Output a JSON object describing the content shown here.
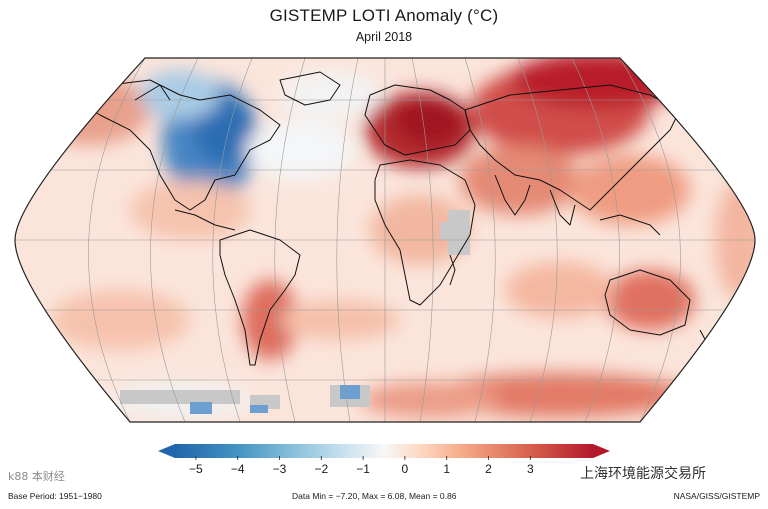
{
  "header": {
    "title": "GISTEMP LOTI Anomaly (°C)",
    "subtitle": "April 2018"
  },
  "colorbar": {
    "ticks": [
      "−5",
      "−4",
      "−3",
      "−2",
      "−1",
      "0",
      "1",
      "2",
      "3"
    ],
    "range": [
      -5.5,
      4.5
    ],
    "colors": [
      "#2166ac",
      "#4393c3",
      "#92c5de",
      "#d1e5f0",
      "#f7f7f7",
      "#fddbc7",
      "#f4a582",
      "#d6604d",
      "#b2182b"
    ]
  },
  "footer": {
    "base_period": "Base Period: 1951−1980",
    "stats": "Data Min = −7.20, Max = 6.08, Mean = 0.86",
    "credit": "NASA/GISS/GISTEMP"
  },
  "watermarks": {
    "left": "k88 本财经",
    "right": "上海环境能源交易所"
  },
  "map": {
    "projection": "Robinson",
    "missing_data_color": "#c8c8c8",
    "ocean_color": "#fbe3d8"
  }
}
